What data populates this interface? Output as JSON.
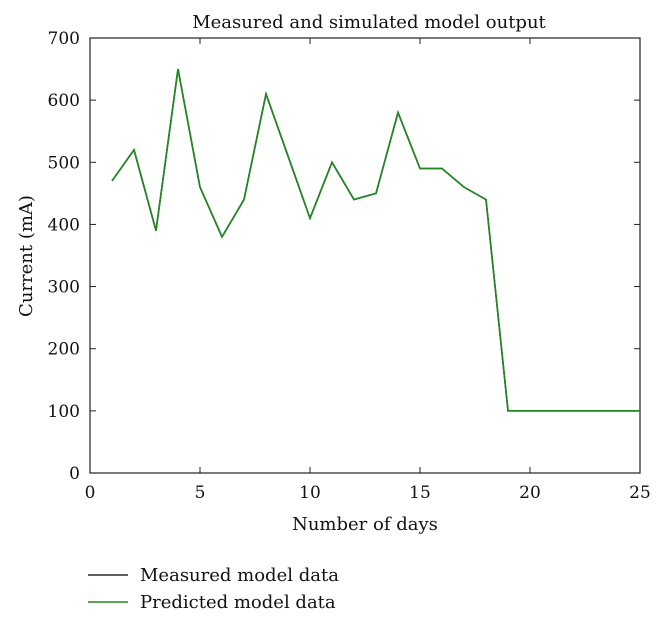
{
  "chart_data": {
    "type": "line",
    "title": "Measured and simulated model output",
    "xlabel": "Number of days",
    "ylabel": "Current (mA)",
    "xlim": [
      0,
      25
    ],
    "ylim": [
      0,
      700
    ],
    "x_ticks": [
      0,
      5,
      10,
      15,
      20,
      25
    ],
    "y_ticks": [
      0,
      100,
      200,
      300,
      400,
      500,
      600,
      700
    ],
    "grid": false,
    "legend_position": "bottom-left, below axes",
    "series": [
      {
        "name": "Measured model data",
        "color": "#2b2b2b",
        "x": [
          1,
          2,
          3,
          4,
          5,
          6,
          7,
          8,
          9,
          10,
          11,
          12,
          13,
          14,
          15,
          16,
          17,
          18,
          19,
          20,
          21,
          22,
          23,
          24,
          25
        ],
        "y": [
          470,
          520,
          390,
          650,
          460,
          380,
          440,
          610,
          510,
          410,
          500,
          440,
          450,
          580,
          490,
          490,
          460,
          440,
          100,
          100,
          100,
          100,
          100,
          100,
          100
        ]
      },
      {
        "name": "Predicted model data",
        "color": "#1e8a1e",
        "x": [
          1,
          2,
          3,
          4,
          5,
          6,
          7,
          8,
          9,
          10,
          11,
          12,
          13,
          14,
          15,
          16,
          17,
          18,
          19,
          20,
          21,
          22,
          23,
          24,
          25
        ],
        "y": [
          470,
          520,
          390,
          650,
          460,
          380,
          440,
          610,
          510,
          410,
          500,
          440,
          450,
          580,
          490,
          490,
          460,
          440,
          100,
          100,
          100,
          100,
          100,
          100,
          100
        ]
      }
    ]
  }
}
